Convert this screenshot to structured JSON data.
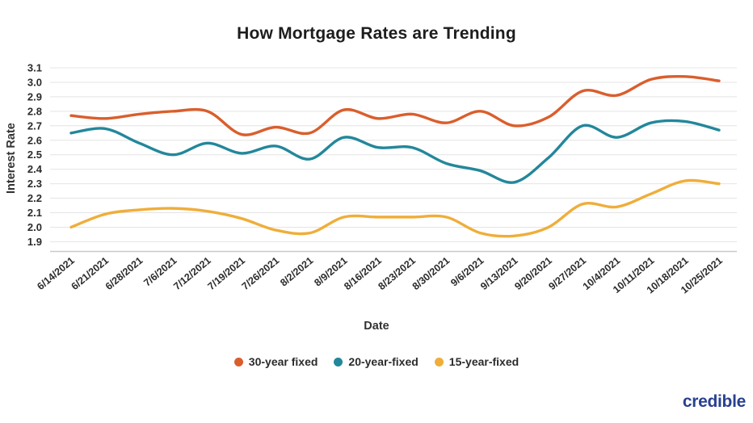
{
  "branding": {
    "logo_text": "credible",
    "logo_color": "#28418F"
  },
  "chart_data": {
    "type": "line",
    "title": "How Mortgage Rates are Trending",
    "xlabel": "Date",
    "ylabel": "Interest Rate",
    "ylim": [
      1.9,
      3.1
    ],
    "ytick_step": 0.1,
    "grid": true,
    "legend_position": "bottom",
    "categories": [
      "6/14/2021",
      "6/21/2021",
      "6/28/2021",
      "7/6/2021",
      "7/12/2021",
      "7/19/2021",
      "7/26/2021",
      "8/2/2021",
      "8/9/2021",
      "8/16/2021",
      "8/23/2021",
      "8/30/2021",
      "9/6/2021",
      "9/13/2021",
      "9/20/2021",
      "9/27/2021",
      "10/4/2021",
      "10/11/2021",
      "10/18/2021",
      "10/25/2021"
    ],
    "series": [
      {
        "name": "30-year fixed",
        "color": "#DA5E2C",
        "values": [
          2.77,
          2.75,
          2.78,
          2.8,
          2.8,
          2.64,
          2.69,
          2.65,
          2.81,
          2.75,
          2.78,
          2.72,
          2.8,
          2.7,
          2.76,
          2.94,
          2.91,
          3.02,
          3.04,
          3.01
        ]
      },
      {
        "name": "20-year-fixed",
        "color": "#23879B",
        "values": [
          2.65,
          2.68,
          2.58,
          2.5,
          2.58,
          2.51,
          2.56,
          2.47,
          2.62,
          2.55,
          2.55,
          2.44,
          2.39,
          2.31,
          2.48,
          2.7,
          2.62,
          2.72,
          2.73,
          2.67
        ]
      },
      {
        "name": "15-year-fixed",
        "color": "#EFAE3A",
        "values": [
          2.0,
          2.09,
          2.12,
          2.13,
          2.11,
          2.06,
          1.98,
          1.96,
          2.07,
          2.07,
          2.07,
          2.07,
          1.96,
          1.94,
          2.0,
          2.16,
          2.14,
          2.23,
          2.32,
          2.3
        ]
      }
    ],
    "colors": {
      "gridline": "#E4E4E4",
      "axis_line": "#C9C9C9",
      "tick_text": "#2B2B2B"
    }
  }
}
